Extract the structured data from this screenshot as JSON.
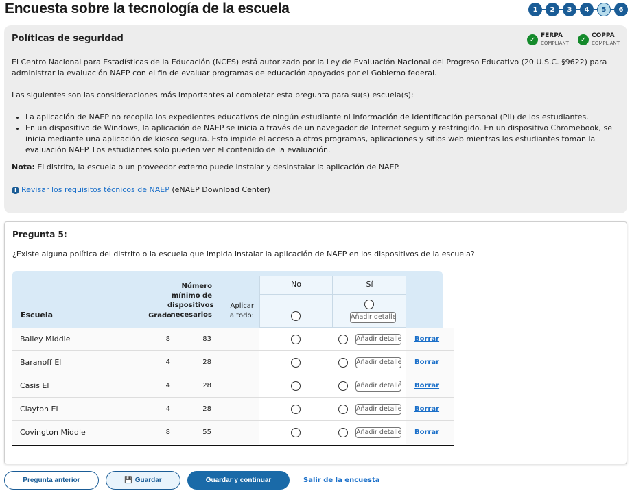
{
  "title": "Encuesta sobre la tecnología de la escuela",
  "steps": [
    {
      "label": "1"
    },
    {
      "label": "2"
    },
    {
      "label": "3"
    },
    {
      "label": "4"
    },
    {
      "label": "5",
      "current": true
    },
    {
      "label": "6"
    }
  ],
  "panel": {
    "title": "Políticas de seguridad",
    "badges": [
      {
        "name": "FERPA",
        "sub": "COMPLIANT"
      },
      {
        "name": "COPPA",
        "sub": "COMPLIANT"
      }
    ],
    "intro": "El Centro Nacional para Estadísticas de la Educación (NCES) está autorizado por la Ley de Evaluación Nacional del Progreso Educativo (20 U.S.C. §9622) para administrar la evaluación NAEP con el fin de evaluar programas de educación apoyados por el Gobierno federal.",
    "lead": "Las siguientes son las consideraciones más importantes al completar esta pregunta para su(s) escuela(s):",
    "bullets": [
      "La aplicación de NAEP no recopila los expedientes educativos de ningún estudiante ni información de identificación personal (PII) de los estudiantes.",
      "En un dispositivo de Windows, la aplicación de NAEP se inicia a través de un navegador de Internet seguro y restringido. En un dispositivo Chromebook, se inicia mediante una aplicación de kiosco segura. Esto impide el acceso a otros programas, aplicaciones y sitios web mientras los estudiantes toman la evaluación NAEP. Los estudiantes solo pueden ver el contenido de la evaluación."
    ],
    "note_label": "Nota:",
    "note": " El distrito, la escuela o un proveedor externo puede instalar y desinstalar la aplicación de NAEP.",
    "link": "Revisar los requisitos técnicos de NAEP",
    "link_suffix": " (eNAEP Download Center)"
  },
  "question": {
    "title": "Pregunta 5:",
    "text": "¿Existe alguna política del distrito o la escuela que impida instalar la aplicación de NAEP en los dispositivos de la escuela?",
    "headers": {
      "school": "Escuela",
      "grade": "Grado",
      "min": "Número mínimo de dispositivos necesarios",
      "apply": "Aplicar a todo:",
      "no": "No",
      "yes": "Sí"
    },
    "add_details": "Añadir detalles",
    "delete": "Borrar",
    "rows": [
      {
        "school": "Bailey Middle",
        "grade": "8",
        "min": "83"
      },
      {
        "school": "Baranoff El",
        "grade": "4",
        "min": "28"
      },
      {
        "school": "Casis El",
        "grade": "4",
        "min": "28"
      },
      {
        "school": "Clayton El",
        "grade": "4",
        "min": "28"
      },
      {
        "school": "Covington Middle",
        "grade": "8",
        "min": "55"
      }
    ]
  },
  "footer": {
    "prev": "Pregunta anterior",
    "save": "Guardar",
    "save_continue": "Guardar y continuar",
    "exit": "Salir de la encuesta"
  },
  "colors": {
    "primary": "#1a5c96",
    "success": "#148a2b",
    "link": "#1a6fc9"
  }
}
